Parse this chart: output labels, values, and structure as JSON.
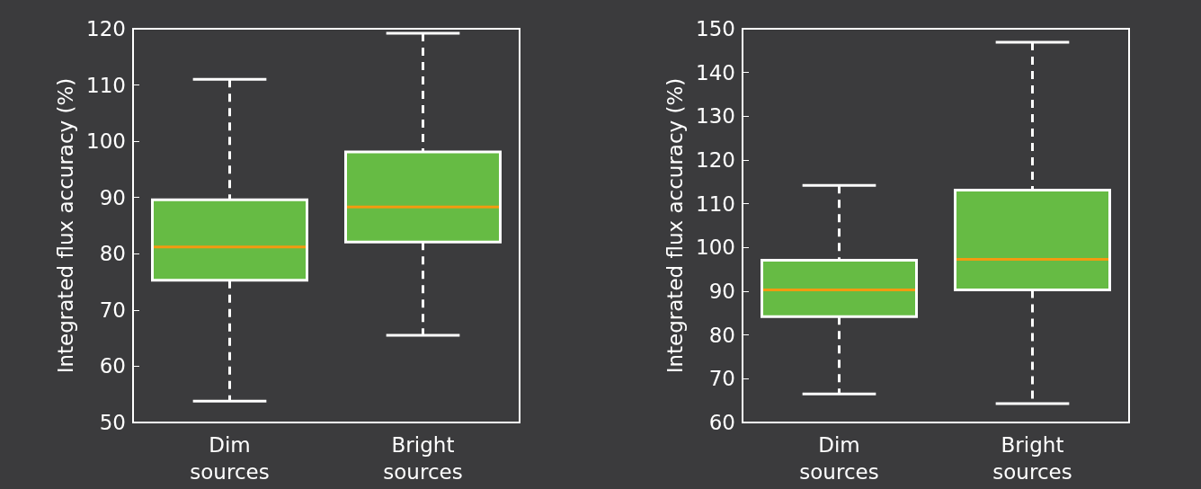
{
  "chart_data": [
    {
      "type": "box",
      "ylabel": "Integrated flux accuracy (%)",
      "categories": [
        "Dim\nsources",
        "Bright\nsources"
      ],
      "color": "#66bb44",
      "grid": false,
      "boxes": [
        {
          "low": 53.8,
          "q1": 75.3,
          "median": 81.2,
          "q3": 89.6,
          "high": 111
        },
        {
          "low": 65.5,
          "q1": 82.1,
          "median": 88.3,
          "q3": 98.1,
          "high": 119.2
        }
      ],
      "ylim": [
        50,
        120
      ],
      "yticks": [
        50,
        60,
        70,
        80,
        90,
        100,
        110,
        120
      ]
    },
    {
      "type": "box",
      "ylabel": "Integrated flux accuracy (%)",
      "categories": [
        "Dim\nsources",
        "Bright\nsources"
      ],
      "color": "#66bb44",
      "grid": false,
      "boxes": [
        {
          "low": 66.5,
          "q1": 84.2,
          "median": 90.3,
          "q3": 97.1,
          "high": 114.2
        },
        {
          "low": 64.3,
          "q1": 90.3,
          "median": 97.3,
          "q3": 113.1,
          "high": 146.9
        }
      ],
      "ylim": [
        60,
        150
      ],
      "yticks": [
        60,
        70,
        80,
        90,
        100,
        110,
        120,
        130,
        140,
        150
      ]
    }
  ]
}
